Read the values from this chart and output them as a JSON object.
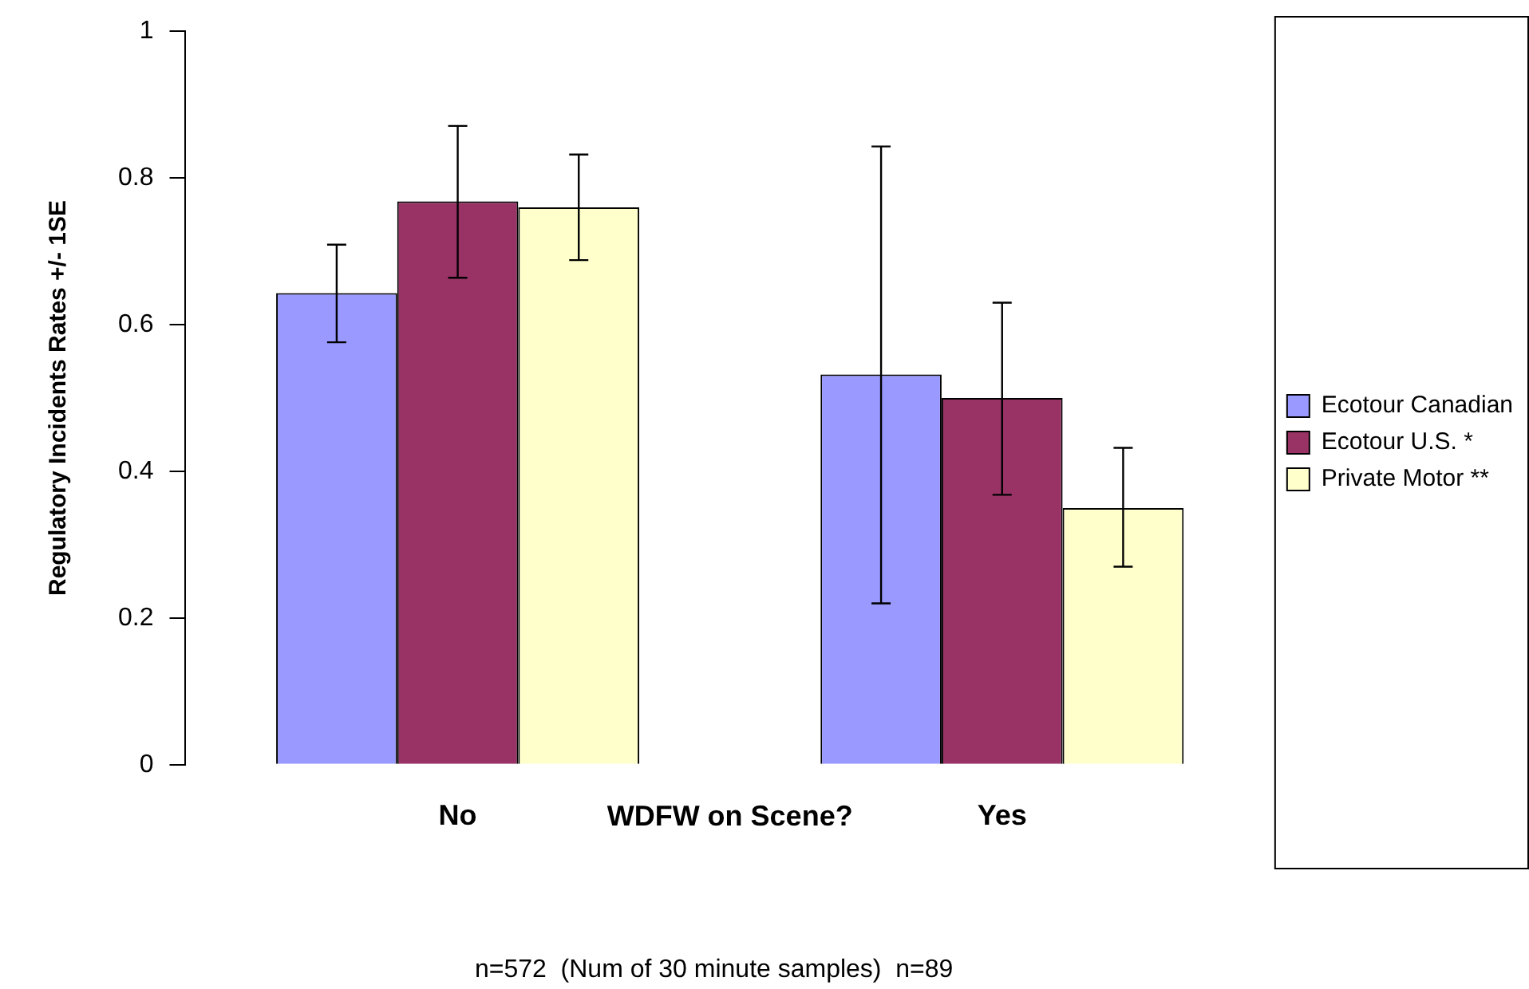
{
  "chart_data": {
    "type": "bar",
    "categories": [
      "No",
      "Yes"
    ],
    "xlabel": "WDFW on Scene?",
    "ylabel": "Regulatory Incidents Rates +/- 1SE",
    "series": [
      {
        "name": "Ecotour Canadian",
        "color": "#9999ff",
        "values": [
          0.643,
          0.532
        ],
        "errors": [
          [
            0.576,
            0.709
          ],
          [
            0.22,
            0.843
          ]
        ]
      },
      {
        "name": "Ecotour U.S. *",
        "color": "#993366",
        "values": [
          0.768,
          0.5
        ],
        "errors": [
          [
            0.664,
            0.871
          ],
          [
            0.368,
            0.63
          ]
        ]
      },
      {
        "name": "Private Motor **",
        "color": "#ffffcc",
        "values": [
          0.76,
          0.35
        ],
        "errors": [
          [
            0.688,
            0.832
          ],
          [
            0.27,
            0.432
          ]
        ]
      }
    ],
    "ylim": [
      0,
      1
    ],
    "yticks": [
      0,
      0.2,
      0.4,
      0.6,
      0.8,
      1
    ],
    "grid": false,
    "legend": "right",
    "annotations": [
      "n=572  (Num of 30 minute samples)  n=89"
    ]
  }
}
